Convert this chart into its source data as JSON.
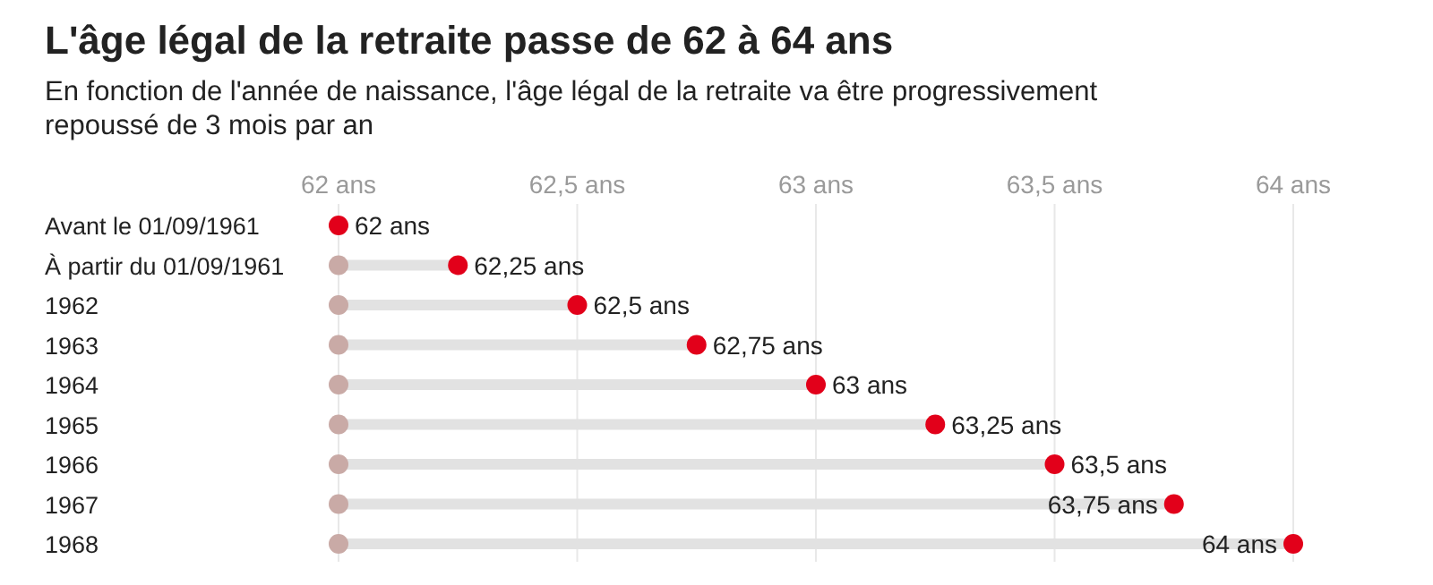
{
  "chart_data": {
    "type": "lollipop",
    "orientation": "horizontal",
    "title": "L'âge légal de la retraite passe de 62 à 64 ans",
    "subtitle": "En fonction de l'année de naissance, l'âge légal de la retraite va être progressivement repoussé de 3 mois par an",
    "categories": [
      "Avant le 01/09/1961",
      "À partir du 01/09/1961",
      "1962",
      "1963",
      "1964",
      "1965",
      "1966",
      "1967",
      "1968"
    ],
    "series": [
      {
        "type": "scatter",
        "color": "#c9aaa6",
        "values": [
          null,
          62,
          62,
          62,
          62,
          62,
          62,
          62,
          62
        ]
      },
      {
        "type": "lollipop",
        "color": "#e2001a",
        "values": [
          62,
          62.25,
          62.5,
          62.75,
          63,
          63.25,
          63.5,
          63.75,
          64
        ],
        "value_labels": [
          "62 ans",
          "62,25 ans",
          "62,5 ans",
          "62,75 ans",
          "63 ans",
          "63,25 ans",
          "63,5 ans",
          "63,75 ans",
          "64 ans"
        ]
      }
    ],
    "xlim": [
      62,
      64
    ],
    "xticks": [
      {
        "value": 62,
        "label": "62 ans"
      },
      {
        "value": 62.5,
        "label": "62,5 ans"
      },
      {
        "value": 63,
        "label": "63 ans"
      },
      {
        "value": 63.5,
        "label": "63,5 ans"
      },
      {
        "value": 64,
        "label": "64 ans"
      }
    ],
    "grid": "x",
    "marker": "circle"
  }
}
